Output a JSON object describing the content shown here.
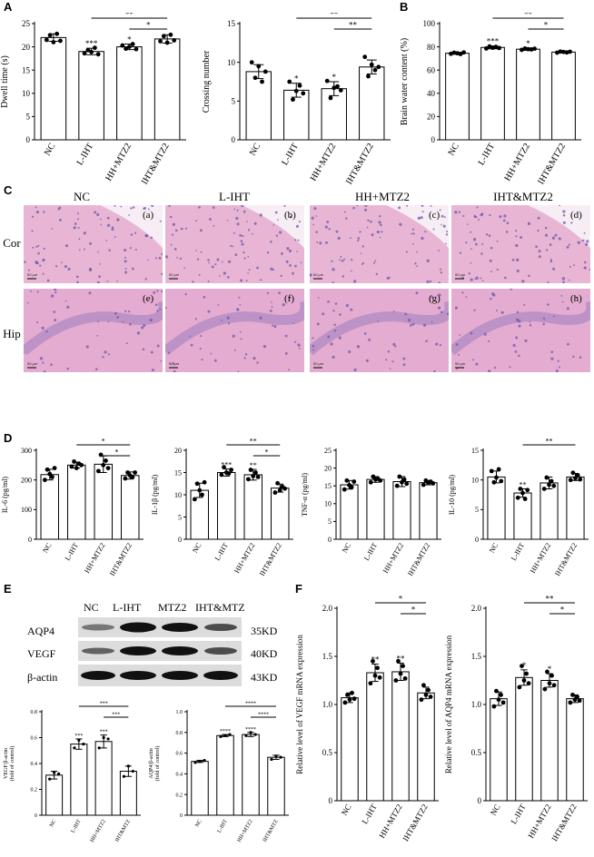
{
  "panels": {
    "A": "A",
    "B": "B",
    "C": "C",
    "D": "D",
    "E": "E",
    "F": "F"
  },
  "histology": {
    "columns": [
      "NC",
      "L-IHT",
      "HH+MTZ2",
      "IHT&MTZ2"
    ],
    "rows": [
      "Cor",
      "Hip"
    ],
    "sublabels": [
      "(a)",
      "(b)",
      "(c)",
      "(d)",
      "(e)",
      "(f)",
      "(g)",
      "(h)"
    ],
    "scale": "50 μm",
    "colors": {
      "cortex": "#e8b6d4",
      "hip": "#e4acd0",
      "cells": "#6f5aa8"
    }
  },
  "western": {
    "lanes": [
      "NC",
      "L-IHT",
      "MTZ2",
      "IHT&MTZ"
    ],
    "proteins": [
      "AQP4",
      "VEGF",
      "β-actin"
    ],
    "sizes": [
      "35KD",
      "40KD",
      "43KD"
    ]
  },
  "chart_data": [
    {
      "id": "A1",
      "type": "bar",
      "categories": [
        "NC",
        "L-IHT",
        "HH+MTZ2",
        "IHT&MTZ2"
      ],
      "values": [
        22,
        19,
        20,
        21.7
      ],
      "errors": [
        0.8,
        0.7,
        0.6,
        0.9
      ],
      "points": [
        [
          21.5,
          22.5,
          21.0,
          22.8,
          21.3
        ],
        [
          18.6,
          19.3,
          18.9,
          19.8,
          18.4
        ],
        [
          20.3,
          19.6,
          20.0,
          20.6,
          19.5
        ],
        [
          21.2,
          22.3,
          20.9,
          22.6,
          21.4
        ]
      ],
      "ylabel": "Dwell time (s)",
      "ylim": [
        0,
        25
      ],
      "yticks": [
        0,
        5,
        10,
        15,
        20,
        25
      ],
      "stars": [
        "",
        "***",
        "*",
        ""
      ],
      "brackets": [
        {
          "from": 1,
          "to": 3,
          "label": "**"
        },
        {
          "from": 2,
          "to": 3,
          "label": "*"
        }
      ]
    },
    {
      "id": "A2",
      "type": "bar",
      "categories": [
        "NC",
        "L-IHT",
        "HH+MTZ2",
        "IHT&MTZ2"
      ],
      "values": [
        8.8,
        6.4,
        6.6,
        9.4
      ],
      "errors": [
        0.9,
        0.9,
        0.9,
        0.9
      ],
      "points": [
        [
          10.0,
          8.0,
          9.5,
          7.5,
          8.8
        ],
        [
          7.5,
          5.2,
          6.3,
          7.0,
          6.0
        ],
        [
          7.6,
          5.4,
          6.7,
          6.9,
          6.4
        ],
        [
          10.7,
          8.2,
          9.7,
          9.0,
          9.4
        ]
      ],
      "ylabel": "Crossing number",
      "ylim": [
        0,
        15
      ],
      "yticks": [
        0,
        5,
        10,
        15
      ],
      "stars": [
        "",
        "*",
        "*",
        ""
      ],
      "brackets": [
        {
          "from": 1,
          "to": 3,
          "label": "**"
        },
        {
          "from": 2,
          "to": 3,
          "label": "**"
        }
      ]
    },
    {
      "id": "B",
      "type": "bar",
      "categories": [
        "NC",
        "L-IHT",
        "HH+MTZ2",
        "IHT&MTZ2"
      ],
      "values": [
        74.5,
        79.5,
        78,
        75.5
      ],
      "errors": [
        0.8,
        1.2,
        1.0,
        0.8
      ],
      "points": [
        [
          74.0,
          75.0,
          74.5,
          73.8,
          75.2
        ],
        [
          78.6,
          80.4,
          79.2,
          80.0,
          79.0
        ],
        [
          77.4,
          78.6,
          78.0,
          77.8,
          78.4
        ],
        [
          75.0,
          76.0,
          75.6,
          75.2,
          75.8
        ]
      ],
      "ylabel": "Brain water content (%)",
      "ylim": [
        0,
        100
      ],
      "yticks": [
        0,
        20,
        40,
        60,
        80,
        100
      ],
      "stars": [
        "",
        "***",
        "*",
        ""
      ],
      "brackets": [
        {
          "from": 1,
          "to": 3,
          "label": "**"
        },
        {
          "from": 2,
          "to": 3,
          "label": "*"
        }
      ]
    },
    {
      "id": "D1",
      "type": "bar",
      "categories": [
        "NC",
        "L-IHT",
        "HH+MTZ2",
        "IHT&MTZ2"
      ],
      "values": [
        218,
        250,
        253,
        215
      ],
      "errors": [
        18,
        10,
        28,
        12
      ],
      "points": [
        [
          200,
          235,
          220,
          210,
          240
        ],
        [
          245,
          262,
          240,
          255,
          250
        ],
        [
          230,
          285,
          250,
          265,
          240
        ],
        [
          205,
          225,
          215,
          210,
          225
        ]
      ],
      "ylabel": "IL-6 (pg/ml)",
      "ylim": [
        0,
        300
      ],
      "yticks": [
        0,
        100,
        200,
        300
      ],
      "stars": [
        "",
        "",
        "",
        ""
      ],
      "brackets": [
        {
          "from": 1,
          "to": 3,
          "label": "*"
        },
        {
          "from": 2,
          "to": 3,
          "label": "*"
        }
      ]
    },
    {
      "id": "D2",
      "type": "bar",
      "categories": [
        "NC",
        "L-IHT",
        "HH+MTZ2",
        "IHT&MTZ2"
      ],
      "values": [
        11,
        15,
        14.5,
        11.5
      ],
      "errors": [
        1.6,
        0.8,
        1.2,
        0.9
      ],
      "points": [
        [
          9.0,
          12.5,
          11.0,
          10.0,
          12.8
        ],
        [
          14.5,
          16.2,
          15.0,
          14.8,
          15.6
        ],
        [
          13.5,
          15.6,
          14.2,
          15.0,
          14.0
        ],
        [
          10.5,
          12.6,
          11.0,
          11.8,
          11.4
        ]
      ],
      "ylabel": "IL-1β (pg/ml)",
      "ylim": [
        0,
        20
      ],
      "yticks": [
        0,
        5,
        10,
        15,
        20
      ],
      "stars": [
        "",
        "***",
        "**",
        ""
      ],
      "brackets": [
        {
          "from": 1,
          "to": 3,
          "label": "**"
        },
        {
          "from": 2,
          "to": 3,
          "label": "*"
        }
      ]
    },
    {
      "id": "D3",
      "type": "bar",
      "categories": [
        "NC",
        "L-IHT",
        "HH+MTZ2",
        "IHT&MTZ2"
      ],
      "values": [
        15.3,
        16.8,
        16.2,
        15.9
      ],
      "errors": [
        1.2,
        0.8,
        1.4,
        0.6
      ],
      "points": [
        [
          14.0,
          16.5,
          15.2,
          14.6,
          16.2
        ],
        [
          16.0,
          17.6,
          16.8,
          17.0,
          16.5
        ],
        [
          15.0,
          17.6,
          16.0,
          16.8,
          15.6
        ],
        [
          15.3,
          16.5,
          15.8,
          16.2,
          15.7
        ]
      ],
      "ylabel": "TNF-α (pg/ml)",
      "ylim": [
        0,
        25
      ],
      "yticks": [
        0,
        5,
        10,
        15,
        20,
        25
      ],
      "stars": [
        "",
        "",
        "",
        ""
      ],
      "brackets": []
    },
    {
      "id": "D4",
      "type": "bar",
      "categories": [
        "NC",
        "L-IHT",
        "HH+MTZ2",
        "IHT&MTZ2"
      ],
      "values": [
        10.5,
        7.8,
        9.5,
        10.5
      ],
      "errors": [
        1.0,
        0.7,
        1.0,
        0.6
      ],
      "points": [
        [
          11.5,
          9.6,
          10.4,
          11.8,
          9.8
        ],
        [
          7.0,
          8.5,
          7.8,
          6.8,
          8.3
        ],
        [
          8.5,
          10.4,
          9.2,
          9.8,
          9.0
        ],
        [
          10.0,
          11.2,
          10.3,
          10.8,
          10.1
        ]
      ],
      "ylabel": "IL-10 (pg/ml)",
      "ylim": [
        0,
        15
      ],
      "yticks": [
        0,
        5,
        10,
        15
      ],
      "stars": [
        "",
        "**",
        "",
        ""
      ],
      "brackets": [
        {
          "from": 1,
          "to": 3,
          "label": "**"
        }
      ]
    },
    {
      "id": "E1",
      "type": "bar",
      "categories": [
        "NC",
        "L-IHT",
        "HH+MTZ2",
        "IHT&MTZ"
      ],
      "values": [
        0.31,
        0.55,
        0.57,
        0.34
      ],
      "errors": [
        0.03,
        0.04,
        0.05,
        0.04
      ],
      "points": [
        [
          0.28,
          0.33,
          0.32
        ],
        [
          0.52,
          0.58,
          0.55
        ],
        [
          0.52,
          0.6,
          0.59
        ],
        [
          0.3,
          0.38,
          0.34
        ]
      ],
      "ylabel": "VEGF/β-actin\n(fold of control)",
      "ylim": [
        0,
        0.8
      ],
      "yticks": [
        0,
        0.2,
        0.4,
        0.6,
        0.8
      ],
      "stars": [
        "",
        "***",
        "***",
        ""
      ],
      "brackets": [
        {
          "from": 1,
          "to": 3,
          "label": "***"
        },
        {
          "from": 2,
          "to": 3,
          "label": "***"
        }
      ]
    },
    {
      "id": "E2",
      "type": "bar",
      "categories": [
        "NC",
        "L-IHT",
        "HH+MTZ2",
        "IHT&MTZ"
      ],
      "values": [
        0.52,
        0.77,
        0.78,
        0.56
      ],
      "errors": [
        0.01,
        0.01,
        0.02,
        0.02
      ],
      "points": [
        [
          0.51,
          0.52,
          0.53
        ],
        [
          0.76,
          0.77,
          0.78
        ],
        [
          0.77,
          0.8,
          0.78
        ],
        [
          0.54,
          0.57,
          0.56
        ]
      ],
      "ylabel": "AQP4/β-actin\n(fold of control)",
      "ylim": [
        0,
        1.0
      ],
      "yticks": [
        0,
        0.2,
        0.4,
        0.6,
        0.8,
        1.0
      ],
      "stars": [
        "",
        "****",
        "****",
        ""
      ],
      "brackets": [
        {
          "from": 1,
          "to": 3,
          "label": "****"
        },
        {
          "from": 2,
          "to": 3,
          "label": "****"
        }
      ]
    },
    {
      "id": "F1",
      "type": "bar",
      "categories": [
        "NC",
        "L-IHT",
        "HH+MTZ2",
        "IHT&MTZ2"
      ],
      "values": [
        1.07,
        1.33,
        1.34,
        1.12
      ],
      "errors": [
        0.05,
        0.09,
        0.09,
        0.06
      ],
      "points": [
        [
          1.02,
          1.1,
          1.05,
          1.12,
          1.06
        ],
        [
          1.22,
          1.45,
          1.3,
          1.38,
          1.28
        ],
        [
          1.25,
          1.45,
          1.32,
          1.4,
          1.27
        ],
        [
          1.05,
          1.2,
          1.1,
          1.15,
          1.08
        ]
      ],
      "ylabel": "Relative level of VEGF mRNA expression",
      "ylim": [
        0,
        2.0
      ],
      "yticks": [
        0,
        0.5,
        1.0,
        1.5,
        2.0
      ],
      "stars": [
        "",
        "**",
        "**",
        ""
      ],
      "brackets": [
        {
          "from": 1,
          "to": 3,
          "label": "*"
        },
        {
          "from": 2,
          "to": 3,
          "label": "*"
        }
      ]
    },
    {
      "id": "F2",
      "type": "bar",
      "categories": [
        "NC",
        "L-IHT",
        "HH+MTZ2",
        "IHT&MTZ2"
      ],
      "values": [
        1.06,
        1.28,
        1.25,
        1.06
      ],
      "errors": [
        0.07,
        0.08,
        0.07,
        0.04
      ],
      "points": [
        [
          0.98,
          1.14,
          1.05,
          1.1,
          1.02
        ],
        [
          1.18,
          1.4,
          1.25,
          1.32,
          1.22
        ],
        [
          1.16,
          1.34,
          1.22,
          1.3,
          1.2
        ],
        [
          1.02,
          1.1,
          1.05,
          1.08,
          1.04
        ]
      ],
      "ylabel": "Relative level of AQP4 mRNA expression",
      "ylim": [
        0,
        2.0
      ],
      "yticks": [
        0,
        0.5,
        1.0,
        1.5,
        2.0
      ],
      "stars": [
        "",
        "*",
        "*",
        ""
      ],
      "brackets": [
        {
          "from": 1,
          "to": 3,
          "label": "**"
        },
        {
          "from": 2,
          "to": 3,
          "label": "*"
        }
      ]
    }
  ]
}
